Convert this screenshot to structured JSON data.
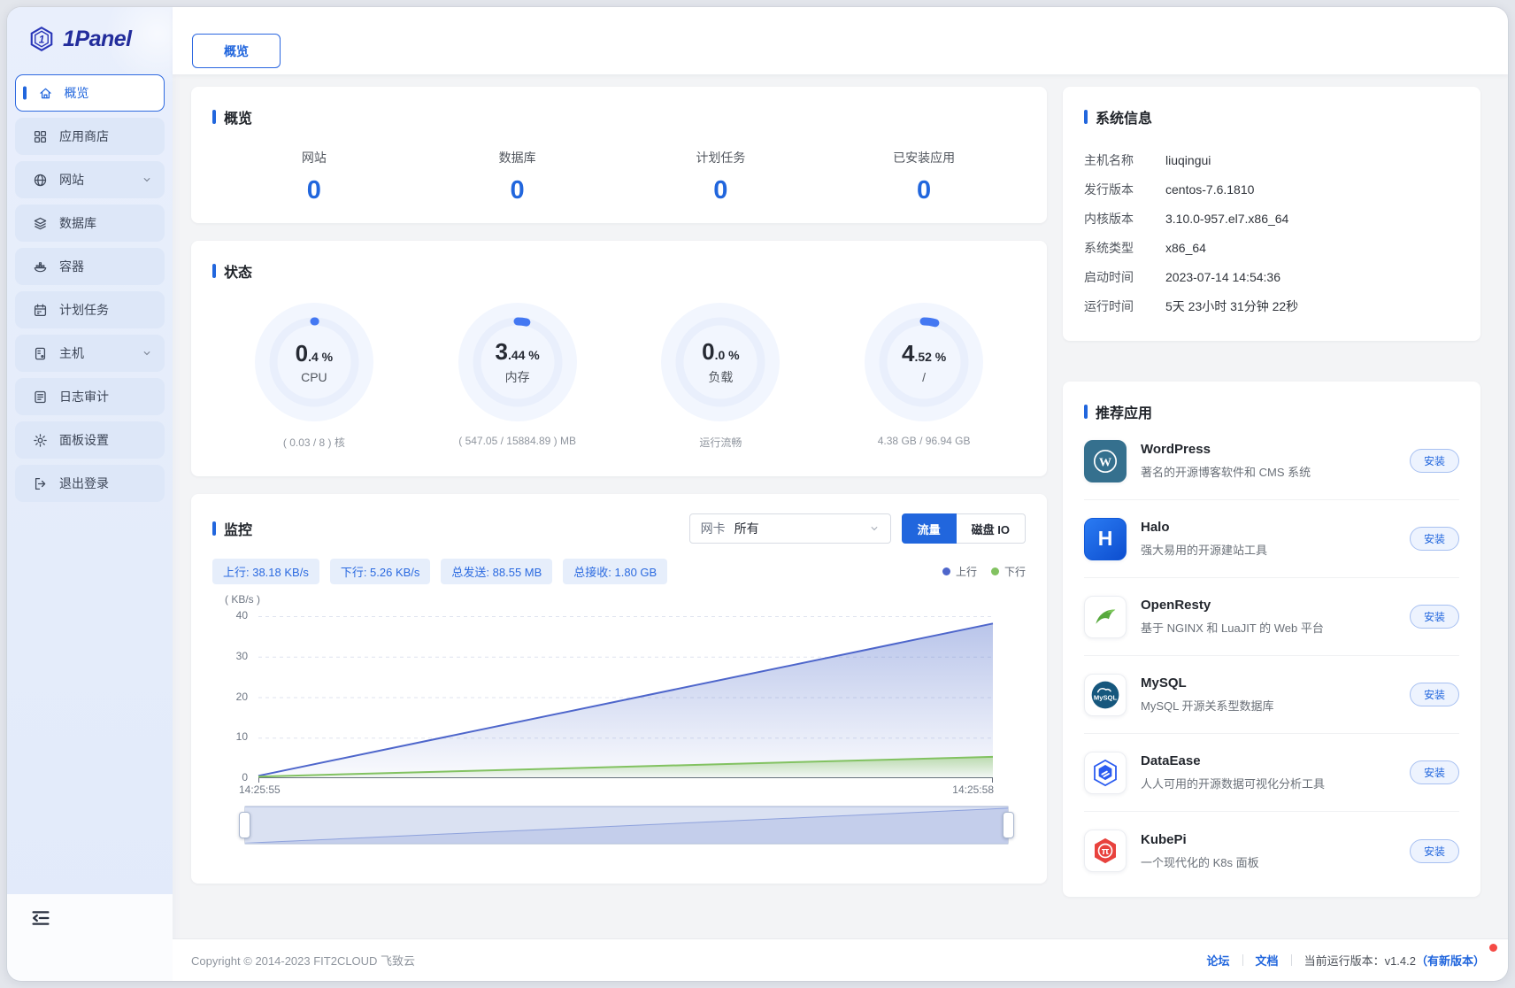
{
  "brand": {
    "name": "1Panel"
  },
  "sidebar": {
    "items": [
      {
        "label": "概览"
      },
      {
        "label": "应用商店"
      },
      {
        "label": "网站"
      },
      {
        "label": "数据库"
      },
      {
        "label": "容器"
      },
      {
        "label": "计划任务"
      },
      {
        "label": "主机"
      },
      {
        "label": "日志审计"
      },
      {
        "label": "面板设置"
      },
      {
        "label": "退出登录"
      }
    ]
  },
  "tabbar": {
    "overview": "概览"
  },
  "overview": {
    "title": "概览",
    "stats": [
      {
        "label": "网站",
        "value": "0"
      },
      {
        "label": "数据库",
        "value": "0"
      },
      {
        "label": "计划任务",
        "value": "0"
      },
      {
        "label": "已安装应用",
        "value": "0"
      }
    ]
  },
  "status": {
    "title": "状态",
    "gauges": [
      {
        "int": "0",
        "frac": ".4 %",
        "label": "CPU",
        "sub": "( 0.03 / 8 ) 核",
        "percent": 0.4
      },
      {
        "int": "3",
        "frac": ".44 %",
        "label": "内存",
        "sub": "( 547.05 / 15884.89 ) MB",
        "percent": 3.44
      },
      {
        "int": "0",
        "frac": ".0 %",
        "label": "负载",
        "sub": "运行流畅",
        "percent": 0
      },
      {
        "int": "4",
        "frac": ".52 %",
        "label": "/",
        "sub": "4.38 GB / 96.94 GB",
        "percent": 4.52
      }
    ]
  },
  "monitor": {
    "title": "监控",
    "nic": {
      "label": "网卡",
      "value": "所有"
    },
    "mode_buttons": {
      "traffic": "流量",
      "disk_io": "磁盘 IO"
    },
    "badges": [
      "上行: 38.18 KB/s",
      "下行: 5.26 KB/s",
      "总发送: 88.55 MB",
      "总接收: 1.80 GB"
    ],
    "chart": {
      "type": "area",
      "unit": "( KB/s )",
      "y_ticks": [
        "40",
        "30",
        "20",
        "10",
        "0"
      ],
      "ylim": [
        0,
        40
      ],
      "x_labels": [
        "14:25:55",
        "14:25:58"
      ],
      "grid": true,
      "legend_position": "top-right",
      "series": [
        {
          "name": "上行",
          "color": "#4e66cb",
          "values": [
            0.6,
            38.18
          ]
        },
        {
          "name": "下行",
          "color": "#82c261",
          "values": [
            0.4,
            5.26
          ]
        }
      ]
    }
  },
  "system_info": {
    "title": "系统信息",
    "rows": [
      {
        "label": "主机名称",
        "value": "liuqingui"
      },
      {
        "label": "发行版本",
        "value": "centos-7.6.1810"
      },
      {
        "label": "内核版本",
        "value": "3.10.0-957.el7.x86_64"
      },
      {
        "label": "系统类型",
        "value": "x86_64"
      },
      {
        "label": "启动时间",
        "value": "2023-07-14 14:54:36"
      },
      {
        "label": "运行时间",
        "value": "5天 23小时 31分钟 22秒"
      }
    ]
  },
  "recommended": {
    "title": "推荐应用",
    "install_label": "安装",
    "apps": [
      {
        "name": "WordPress",
        "desc": "著名的开源博客软件和 CMS 系统",
        "glyph": "W"
      },
      {
        "name": "Halo",
        "desc": "强大易用的开源建站工具",
        "glyph": "H"
      },
      {
        "name": "OpenResty",
        "desc": "基于 NGINX 和 LuaJIT 的 Web 平台",
        "glyph": ""
      },
      {
        "name": "MySQL",
        "desc": "MySQL 开源关系型数据库",
        "glyph": "MySQL"
      },
      {
        "name": "DataEase",
        "desc": "人人可用的开源数据可视化分析工具",
        "glyph": ""
      },
      {
        "name": "KubePi",
        "desc": "一个现代化的 K8s 面板",
        "glyph": "π"
      }
    ]
  },
  "footer": {
    "copyright": "Copyright © 2014-2023 FIT2CLOUD 飞致云",
    "forum": "论坛",
    "docs": "文档",
    "version": "当前运行版本：v1.4.2",
    "new_version": "（有新版本）"
  }
}
